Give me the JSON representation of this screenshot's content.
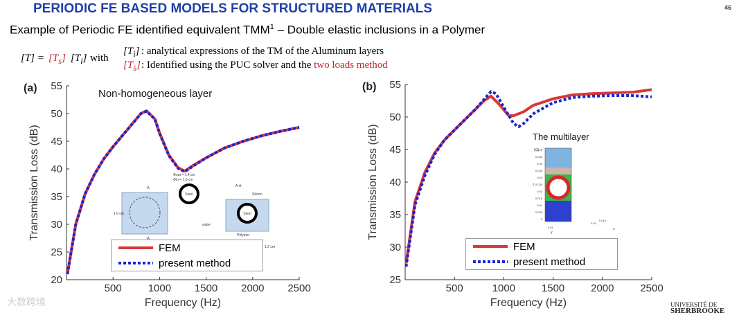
{
  "header": {
    "title": "PERIODIC FE BASED MODELS FOR STRUCTURED MATERIALS",
    "page_number": "46",
    "subtitle_main": "Example of Periodic FE identified equivalent TMM",
    "subtitle_sup": "1",
    "subtitle_dash": " – ",
    "subtitle_tail": "Double elastic  inclusions in a Polymer"
  },
  "formula": {
    "lhs": "[T] = ",
    "ts": "[T",
    "ts_sub": "s",
    "ts_close": "]",
    "ti": "[T",
    "ti_sub": "i",
    "ti_close": "]",
    "with": " with ",
    "line1_text": ": analytical expressions of the TM of the Aluminum layers",
    "line2_text_black": ": Identified using the PUC solver and the ",
    "line2_text_red": "two loads method"
  },
  "colors": {
    "fem": "#d7383a",
    "present": "#1a22d4",
    "title": "#1f3fa8"
  },
  "chart_data": [
    {
      "type": "line",
      "panel_label": "(a)",
      "annotation": "Non-homogeneous layer",
      "xlabel": "Frequency (Hz)",
      "ylabel": "Transmission Loss (dB)",
      "xlim": [
        0,
        2500
      ],
      "ylim": [
        20,
        55
      ],
      "xticks": [
        500,
        1000,
        1500,
        2000,
        2500
      ],
      "yticks": [
        20,
        25,
        30,
        35,
        40,
        45,
        50,
        55
      ],
      "series": [
        {
          "name": "FEM",
          "style": "solid",
          "x": [
            10,
            100,
            200,
            300,
            400,
            500,
            600,
            700,
            800,
            860,
            950,
            1000,
            1100,
            1200,
            1270,
            1350,
            1500,
            1700,
            1900,
            2100,
            2300,
            2500
          ],
          "y": [
            21,
            30,
            35.5,
            39,
            41.8,
            44,
            46,
            48,
            50,
            50.5,
            49,
            46.5,
            42.5,
            40.2,
            39.6,
            40.5,
            42,
            43.8,
            45,
            46,
            46.8,
            47.5
          ]
        },
        {
          "name": "present method",
          "style": "dotted",
          "x": [
            10,
            100,
            200,
            300,
            400,
            500,
            600,
            700,
            800,
            860,
            950,
            1000,
            1100,
            1200,
            1270,
            1350,
            1500,
            1700,
            1900,
            2100,
            2300,
            2500
          ],
          "y": [
            21,
            30,
            35.5,
            39,
            41.8,
            44,
            46,
            48,
            50,
            50.4,
            49,
            46.4,
            42.4,
            40.1,
            39.5,
            40.4,
            42,
            43.8,
            45,
            46,
            46.8,
            47.5
          ]
        }
      ],
      "inset": {
        "left_labels": [
          "A",
          "A",
          "1.6 cm",
          "1.6 cm"
        ],
        "ring_label": "Steel",
        "dim_text": "Φout = 1.4 cm\nΦin = 1.0 cm",
        "water_label": "water",
        "section_label": "A-A",
        "silicon_label": "Silicon",
        "steel_label": "Steel",
        "polymer_label": "Polymer",
        "bottom_dims": [
          "1.2 cm",
          "1.6 cm",
          "1.2 cm"
        ]
      }
    },
    {
      "type": "line",
      "panel_label": "(b)",
      "annotation": "The multilayer",
      "xlabel": "Frequency (Hz)",
      "ylabel": "Transmission Loss (dB)",
      "xlim": [
        0,
        2500
      ],
      "ylim": [
        25,
        55
      ],
      "xticks": [
        500,
        1000,
        1500,
        2000,
        2500
      ],
      "yticks": [
        25,
        30,
        35,
        40,
        45,
        50,
        55
      ],
      "series": [
        {
          "name": "FEM",
          "style": "solid",
          "x": [
            10,
            100,
            200,
            300,
            400,
            500,
            600,
            700,
            800,
            870,
            950,
            1050,
            1100,
            1200,
            1300,
            1500,
            1700,
            1900,
            2100,
            2300,
            2500
          ],
          "y": [
            27.5,
            37,
            41.5,
            44.5,
            46.5,
            48,
            49.5,
            51,
            52.5,
            53.2,
            52,
            50.2,
            50.2,
            50.8,
            51.8,
            52.8,
            53.4,
            53.6,
            53.7,
            53.8,
            54.2
          ]
        },
        {
          "name": "present method",
          "style": "dotted",
          "x": [
            10,
            100,
            200,
            300,
            400,
            500,
            600,
            700,
            800,
            870,
            920,
            1000,
            1100,
            1150,
            1200,
            1300,
            1500,
            1700,
            1900,
            2100,
            2300,
            2500
          ],
          "y": [
            27,
            36.5,
            41,
            44.3,
            46.5,
            48,
            49.5,
            51,
            52.7,
            53.9,
            53.6,
            51.5,
            49,
            48.5,
            49,
            50.5,
            52.2,
            53,
            53.2,
            53.3,
            53.3,
            53.1
          ]
        }
      ],
      "inset": {
        "panel_tag": "(c)",
        "z_label": "z",
        "z_ticks": [
          "0.05",
          "0.045",
          "0.04",
          "0.035",
          "0.03",
          "0.025",
          "0.02",
          "0.015",
          "0.01",
          "0.005",
          "0"
        ],
        "bottom_ticks": [
          "0.01",
          "0.01",
          "0.015"
        ],
        "x_label": "x",
        "y_label": "y"
      }
    }
  ],
  "legend": {
    "fem_label": "FEM",
    "present_label": "present method"
  },
  "footer": {
    "logo_line1": "UNIVERSITÉ DE",
    "logo_line2": "SHERBROOKE",
    "watermark": "大数跨境"
  }
}
